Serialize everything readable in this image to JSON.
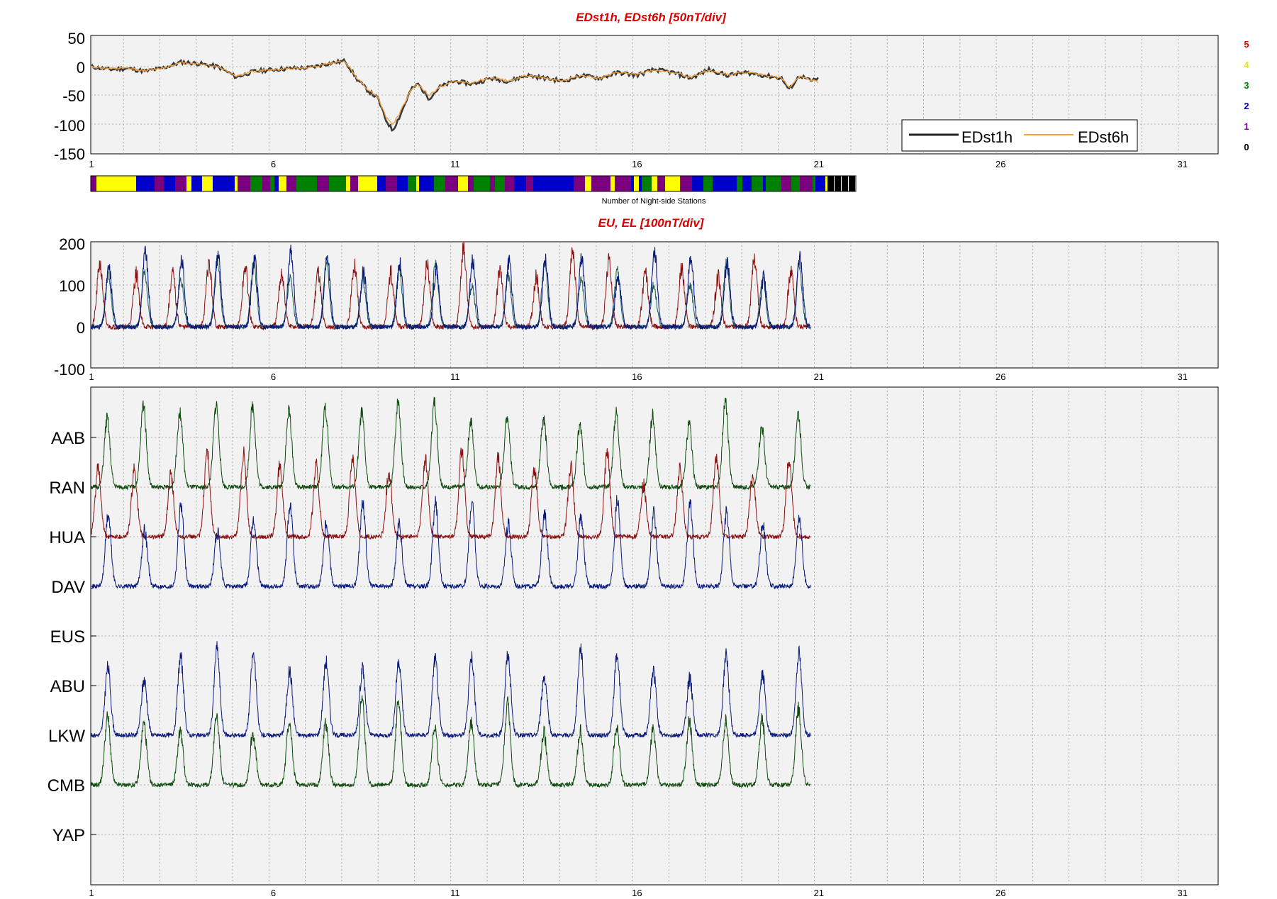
{
  "colors": {
    "title": "#dd0000",
    "axes_bg": "#f2f2f2",
    "grid": "#9a9a9a",
    "edst1h": "#333333",
    "edst6h": "#f0a040",
    "eu": "#0a1a7a",
    "eu2": "#1f5a5a",
    "el": "#8b1010",
    "station_green": "#0f4a0f",
    "station_red": "#8b1010",
    "station_blue": "#0a1a7a"
  },
  "panel1": {
    "title": "EDst1h, EDst6h [50nT/div]",
    "y_ticks": [
      "50",
      "0",
      "-50",
      "-100",
      "-150"
    ],
    "x_ticks": [
      "1",
      "6",
      "11",
      "16",
      "21",
      "26",
      "31"
    ],
    "legend": {
      "s1": "EDst1h",
      "s2": "EDst6h",
      "position": "lower-right"
    },
    "level_labels": [
      {
        "label": "5",
        "color": "#dd0000"
      },
      {
        "label": "4",
        "color": "#e8e800"
      },
      {
        "label": "3",
        "color": "#008000"
      },
      {
        "label": "2",
        "color": "#0000cc"
      },
      {
        "label": "1",
        "color": "#7a00a0"
      },
      {
        "label": "0",
        "color": "#000000"
      }
    ],
    "nightside_label": "Number of Night-side Stations",
    "nightside_palette": [
      "#7a0080",
      "#ffff00",
      "#0000cc",
      "#008000",
      "#7a0080",
      "#ffff00",
      "#7a0080",
      "#0000cc",
      "#ffff00",
      "#7a0080",
      "#008000",
      "#ffff00",
      "#7a0080",
      "#0000cc",
      "#ffff00"
    ]
  },
  "panel2": {
    "title": "EU, EL   [100nT/div]",
    "y_ticks": [
      "200",
      "100",
      "0",
      "-100"
    ],
    "x_ticks": [
      "1",
      "6",
      "11",
      "16",
      "21",
      "26",
      "31"
    ]
  },
  "panel3": {
    "stations": [
      "AAB",
      "RAN",
      "HUA",
      "DAV",
      "EUS",
      "ABU",
      "LKW",
      "CMB",
      "YAP"
    ],
    "x_ticks": [
      "1",
      "6",
      "11",
      "16",
      "21",
      "26",
      "31"
    ]
  },
  "chart_data": [
    {
      "type": "line",
      "title": "EDst1h, EDst6h [50nT/div]",
      "xlim": [
        1,
        32
      ],
      "ylim": [
        -150,
        50
      ],
      "x_ticks": [
        1,
        6,
        11,
        16,
        21,
        26,
        31
      ],
      "y_ticks": [
        50,
        0,
        -50,
        -100,
        -150
      ],
      "grid": true,
      "legend_position": "lower-right",
      "x": [
        1,
        1.5,
        2,
        2.5,
        3,
        3.5,
        4,
        4.5,
        5,
        5.5,
        6,
        6.5,
        7,
        7.5,
        8,
        8.3,
        8.6,
        8.9,
        9.1,
        9.3,
        9.5,
        9.8,
        10,
        10.3,
        10.6,
        11,
        11.5,
        12,
        12.5,
        13,
        13.5,
        14,
        14.5,
        15,
        15.5,
        16,
        16.5,
        17,
        17.5,
        18,
        18.5,
        19,
        19.5,
        20,
        20.2,
        20.5,
        20.8,
        21
      ],
      "series": [
        {
          "name": "EDst1h",
          "values": [
            0,
            -5,
            -3,
            -8,
            -2,
            8,
            5,
            0,
            -18,
            -8,
            -5,
            -3,
            -2,
            5,
            10,
            -20,
            -40,
            -55,
            -90,
            -110,
            -85,
            -40,
            -30,
            -55,
            -35,
            -25,
            -30,
            -20,
            -25,
            -15,
            -20,
            -25,
            -15,
            -20,
            -10,
            -15,
            -5,
            -10,
            -20,
            -5,
            -15,
            -10,
            -15,
            -20,
            -40,
            -15,
            -25,
            -20
          ]
        },
        {
          "name": "EDst6h",
          "values": [
            0,
            -4,
            -3,
            -7,
            -2,
            7,
            5,
            0,
            -16,
            -8,
            -5,
            -3,
            -2,
            5,
            9,
            -18,
            -38,
            -52,
            -85,
            -100,
            -80,
            -40,
            -30,
            -50,
            -35,
            -25,
            -28,
            -20,
            -24,
            -15,
            -20,
            -24,
            -15,
            -20,
            -10,
            -14,
            -6,
            -10,
            -18,
            -6,
            -14,
            -10,
            -14,
            -20,
            -36,
            -16,
            -24,
            -26
          ]
        }
      ]
    },
    {
      "type": "line",
      "title": "EU, EL   [100nT/div]",
      "xlim": [
        1,
        32
      ],
      "ylim": [
        -100,
        200
      ],
      "x_ticks": [
        1,
        6,
        11,
        16,
        21,
        26,
        31
      ],
      "y_ticks": [
        200,
        100,
        0,
        -100
      ],
      "grid": true,
      "x_end": 20.8,
      "series_peaks": {
        "eu_peak_range": [
          100,
          200
        ],
        "el_peak_range": [
          80,
          200
        ],
        "period_days": 1
      }
    },
    {
      "type": "line",
      "xlim": [
        1,
        32
      ],
      "x_ticks": [
        1,
        6,
        11,
        16,
        21,
        26,
        31
      ],
      "stations": [
        "AAB",
        "RAN",
        "HUA",
        "DAV",
        "EUS",
        "ABU",
        "LKW",
        "CMB",
        "YAP"
      ],
      "grid": true,
      "x_end": 20.8
    }
  ]
}
